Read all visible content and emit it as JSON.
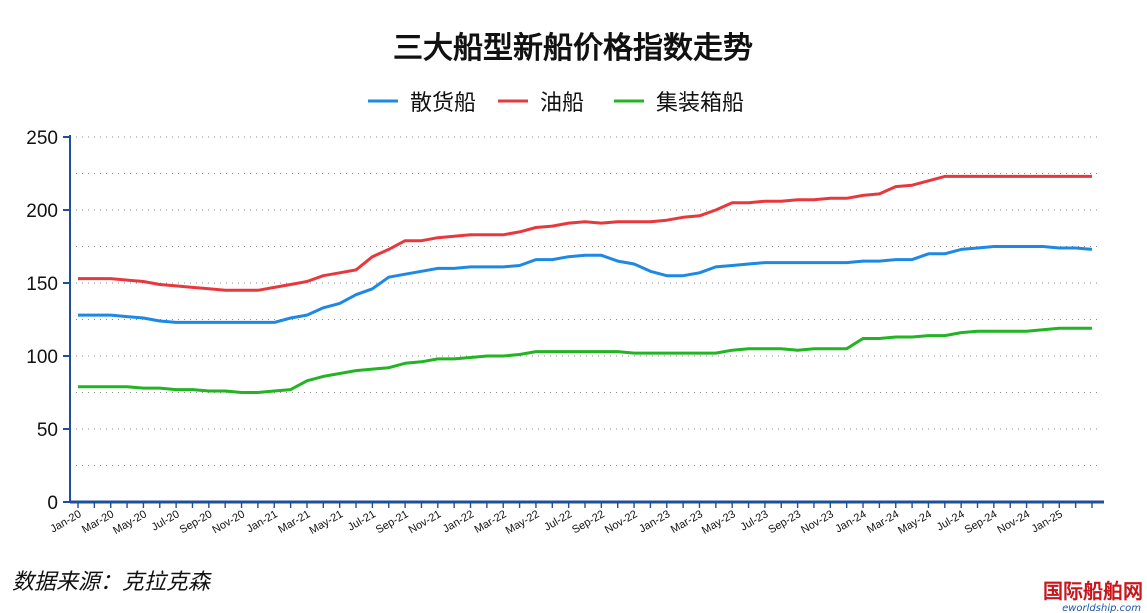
{
  "chart_data": {
    "type": "line",
    "title": "三大船型新船价格指数走势",
    "xlabel": "",
    "ylabel": "",
    "ylim": [
      0,
      250
    ],
    "yticks": [
      "0",
      "50",
      "100",
      "150",
      "200",
      "250"
    ],
    "xtick_labels": [
      "Jan-20",
      "Mar-20",
      "May-20",
      "Jul-20",
      "Sep-20",
      "Nov-20",
      "Jan-21",
      "Mar-21",
      "May-21",
      "Jul-21",
      "Sep-21",
      "Nov-21",
      "Jan-22",
      "Mar-22",
      "May-22",
      "Jul-22",
      "Sep-22",
      "Nov-22",
      "Jan-23",
      "Mar-23",
      "May-23",
      "Jul-23",
      "Sep-23",
      "Nov-23",
      "Jan-24",
      "Mar-24",
      "May-24",
      "Jul-24",
      "Sep-24",
      "Nov-24",
      "Jan-25"
    ],
    "x_start": "Jan-20",
    "x_end": "Jan-25",
    "grid": "horizontal-dotted",
    "legend_position": "top-center",
    "series": [
      {
        "name": "散货船",
        "color": "#1e88e5",
        "values": [
          128,
          128,
          128,
          127,
          126,
          124,
          123,
          123,
          123,
          123,
          123,
          123,
          123,
          126,
          128,
          133,
          136,
          142,
          146,
          154,
          156,
          158,
          160,
          160,
          161,
          161,
          161,
          162,
          166,
          166,
          168,
          169,
          169,
          165,
          163,
          158,
          155,
          155,
          157,
          161,
          162,
          163,
          164,
          164,
          164,
          164,
          164,
          164,
          165,
          165,
          166,
          166,
          170,
          170,
          173,
          174,
          175,
          175,
          175,
          175,
          174,
          174,
          173
        ]
      },
      {
        "name": "油船",
        "color": "#e8383d",
        "values": [
          153,
          153,
          153,
          152,
          151,
          149,
          148,
          147,
          146,
          145,
          145,
          145,
          147,
          149,
          151,
          155,
          157,
          159,
          168,
          173,
          179,
          179,
          181,
          182,
          183,
          183,
          183,
          185,
          188,
          189,
          191,
          192,
          191,
          192,
          192,
          192,
          193,
          195,
          196,
          200,
          205,
          205,
          206,
          206,
          207,
          207,
          208,
          208,
          210,
          211,
          216,
          217,
          220,
          223,
          223,
          223,
          223,
          223,
          223,
          223,
          223,
          223,
          223
        ]
      },
      {
        "name": "集装箱船",
        "color": "#22b422",
        "values": [
          79,
          79,
          79,
          79,
          78,
          78,
          77,
          77,
          76,
          76,
          75,
          75,
          76,
          77,
          83,
          86,
          88,
          90,
          91,
          92,
          95,
          96,
          98,
          98,
          99,
          100,
          100,
          101,
          103,
          103,
          103,
          103,
          103,
          103,
          102,
          102,
          102,
          102,
          102,
          102,
          104,
          105,
          105,
          105,
          104,
          105,
          105,
          105,
          112,
          112,
          113,
          113,
          114,
          114,
          116,
          117,
          117,
          117,
          117,
          118,
          119,
          119,
          119
        ]
      }
    ]
  },
  "source_note": "数据来源：克拉克森",
  "watermark": {
    "main": "国际船舶网",
    "sub": "eworldship.com"
  }
}
